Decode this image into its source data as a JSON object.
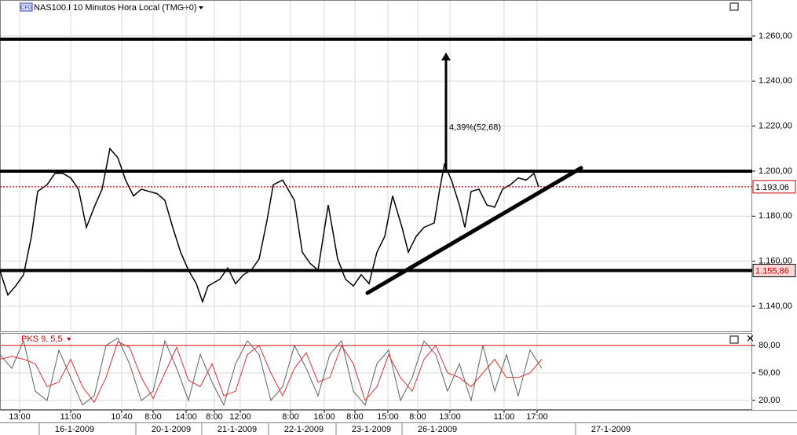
{
  "chart_data": [
    {
      "type": "line",
      "title": "NAS100.I 10 Minutos Hora Local (TMG+0)",
      "badge": "CFD",
      "x": [
        0,
        10,
        20,
        30,
        40,
        48,
        60,
        70,
        80,
        90,
        100,
        110,
        120,
        130,
        140,
        150,
        160,
        170,
        180,
        190,
        200,
        210,
        220,
        230,
        240,
        250,
        258,
        265,
        280,
        290,
        300,
        310,
        320,
        330,
        340,
        348,
        360,
        375,
        385,
        395,
        405,
        418,
        430,
        440,
        450,
        460,
        470,
        480,
        490,
        500,
        512,
        520,
        530,
        540,
        553,
        560,
        566,
        575,
        585,
        592,
        600,
        610,
        620,
        630,
        640,
        650,
        660,
        670,
        680,
        686
      ],
      "series": [
        {
          "color": "#000000",
          "values": [
            1155.7,
            1145,
            1149,
            1154,
            1171,
            1191,
            1194,
            1199,
            1199,
            1197,
            1192,
            1175,
            1184,
            1192,
            1210,
            1206,
            1196,
            1189,
            1192,
            1191,
            1190,
            1187,
            1175,
            1164,
            1156,
            1150,
            1142,
            1149,
            1152,
            1157,
            1150,
            1154,
            1156,
            1161,
            1178,
            1194,
            1196,
            1187,
            1164,
            1159,
            1156,
            1185,
            1161,
            1152,
            1149,
            1154,
            1150,
            1164,
            1171,
            1189,
            1175,
            1164,
            1171,
            1175,
            1177,
            1192,
            1203,
            1196,
            1185,
            1175,
            1191,
            1192,
            1185,
            1184,
            1192,
            1194,
            1197,
            1196,
            1199,
            1193
          ]
        }
      ],
      "xlim": [
        0,
        958
      ],
      "ylim": [
        1128.5,
        1276
      ],
      "yticks": [
        {
          "value": 1140,
          "label": "1.140,00"
        },
        {
          "value": 1160,
          "label": "1.160,00"
        },
        {
          "value": 1180,
          "label": "1.180,00"
        },
        {
          "value": 1200,
          "label": "1.200,00"
        },
        {
          "value": 1220,
          "label": "1.220,00"
        },
        {
          "value": 1240,
          "label": "1.240,00"
        },
        {
          "value": 1260,
          "label": "1.260,00"
        }
      ],
      "xticks": [
        {
          "value": 25,
          "label": "13:00"
        },
        {
          "value": 90,
          "label": "11:00"
        },
        {
          "value": 155,
          "label": "10:40"
        },
        {
          "value": 195,
          "label": "8:00"
        },
        {
          "value": 237,
          "label": "14:00"
        },
        {
          "value": 273,
          "label": "8:00"
        },
        {
          "value": 306,
          "label": "12:00"
        },
        {
          "value": 370,
          "label": "8:00"
        },
        {
          "value": 413,
          "label": "16:00"
        },
        {
          "value": 452,
          "label": "8:00"
        },
        {
          "value": 494,
          "label": "15:00"
        },
        {
          "value": 532,
          "label": "8:00"
        },
        {
          "value": 573,
          "label": "13:00"
        },
        {
          "value": 642,
          "label": "11:00"
        },
        {
          "value": 684,
          "label": "17:00"
        }
      ],
      "xticks_dates": [
        {
          "value": 95,
          "label": "16-1-2009"
        },
        {
          "value": 218,
          "label": "20-1-2009"
        },
        {
          "value": 302,
          "label": "21-1-2009"
        },
        {
          "value": 387,
          "label": "22-1-2009"
        },
        {
          "value": 473,
          "label": "23-1-2009"
        },
        {
          "value": 557,
          "label": "26-1-2009"
        },
        {
          "value": 778,
          "label": "27-1-2009"
        }
      ],
      "grid": true,
      "hlines": [
        {
          "value": 1258.6,
          "color": "#000000"
        },
        {
          "value": 1200,
          "color": "#000000"
        },
        {
          "value": 1155.86,
          "label": "1.155,86",
          "color": "#000000",
          "label_color": "#cc0000",
          "label_fill": "#ffd8d8"
        },
        {
          "value": 1193.06,
          "label": "1.193,06",
          "color": "#cc0000",
          "dotted": true,
          "label_color": "#000000",
          "label_fill": "#ffffff"
        }
      ],
      "trendline": {
        "x": [
          468,
          740
        ],
        "y": [
          1145.9,
          1201.4
        ]
      },
      "arrow": {
        "x": 568,
        "y": [
          1200,
          1252.68
        ],
        "label": "4,39%(52,68)"
      }
    },
    {
      "type": "line",
      "title": "PKS 9, 5,5",
      "x": [
        0,
        15,
        30,
        45,
        60,
        75,
        90,
        105,
        120,
        135,
        150,
        165,
        180,
        195,
        210,
        225,
        240,
        255,
        270,
        285,
        300,
        315,
        330,
        345,
        360,
        375,
        390,
        405,
        420,
        435,
        450,
        465,
        480,
        495,
        510,
        525,
        540,
        555,
        570,
        585,
        600,
        615,
        630,
        645,
        660,
        675,
        690
      ],
      "series": [
        {
          "color": "#606060",
          "values": [
            70,
            55,
            85,
            30,
            20,
            75,
            45,
            15,
            25,
            80,
            88,
            60,
            20,
            30,
            85,
            55,
            20,
            70,
            40,
            15,
            60,
            85,
            70,
            20,
            35,
            80,
            55,
            25,
            70,
            85,
            30,
            15,
            60,
            75,
            20,
            45,
            85,
            70,
            30,
            60,
            20,
            80,
            30,
            70,
            25,
            75,
            55
          ]
        },
        {
          "color": "#e03030",
          "values": [
            65,
            68,
            65,
            60,
            35,
            40,
            65,
            35,
            18,
            45,
            84,
            78,
            45,
            22,
            50,
            78,
            42,
            35,
            60,
            25,
            30,
            70,
            80,
            50,
            25,
            55,
            72,
            40,
            45,
            80,
            60,
            20,
            35,
            70,
            45,
            30,
            65,
            80,
            50,
            45,
            35,
            50,
            65,
            45,
            45,
            50,
            65
          ]
        }
      ],
      "xlim": [
        0,
        958
      ],
      "ylim": [
        9.7,
        93.7
      ],
      "yticks": [
        {
          "value": 20,
          "label": "20,00"
        },
        {
          "value": 50,
          "label": "50,00"
        },
        {
          "value": 80,
          "label": "80,00"
        }
      ],
      "reference_line": {
        "value": 80,
        "color": "#cc0000"
      }
    }
  ]
}
